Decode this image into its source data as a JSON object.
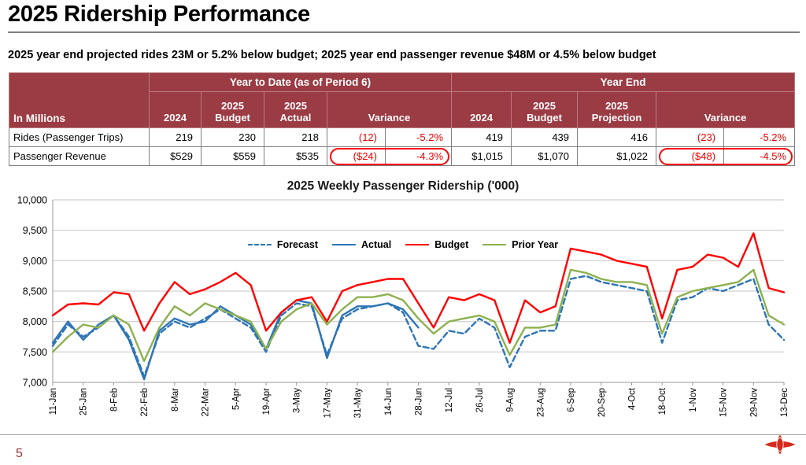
{
  "slide": {
    "title": "2025 Ridership Performance",
    "subtitle": "2025 year end projected rides 23M or 5.2% below budget; 2025 year end passenger revenue $48M or 4.5% below budget",
    "page_number": "5"
  },
  "table": {
    "corner_label": "In Millions",
    "group_headers": [
      "Year to Date (as of Period 6)",
      "Year End"
    ],
    "columns": [
      "2024",
      "2025 Budget",
      "2025 Actual",
      "Variance",
      "2024",
      "2025 Budget",
      "2025 Projection",
      "Variance"
    ],
    "rows": [
      {
        "label": "Rides (Passenger Trips)",
        "values": [
          "219",
          "230",
          "218",
          "(12)",
          "-5.2%",
          "419",
          "439",
          "416",
          "(23)",
          "-5.2%"
        ]
      },
      {
        "label": "Passenger Revenue",
        "values": [
          "$529",
          "$559",
          "$535",
          "($24)",
          "-4.3%",
          "$1,015",
          "$1,070",
          "$1,022",
          "($48)",
          "-4.5%"
        ]
      }
    ],
    "header_bg": "#9B3B43",
    "variance_color": "#EE0000",
    "circle_color": "#FF0000"
  },
  "chart_data": {
    "type": "line",
    "title": "2025 Weekly Passenger Ridership ('000)",
    "ylim": [
      7000,
      10000
    ],
    "yticks": [
      7000,
      7500,
      8000,
      8500,
      9000,
      9500,
      10000
    ],
    "ytick_labels": [
      "7,000",
      "7,500",
      "8,000",
      "8,500",
      "9,000",
      "9,500",
      "10,000"
    ],
    "grid": true,
    "legend_position": "top-center",
    "n_points": 49,
    "x_label_step": 2,
    "x_labels": [
      "11-Jan",
      "25-Jan",
      "8-Feb",
      "22-Feb",
      "8-Mar",
      "22-Mar",
      "5-Apr",
      "19-Apr",
      "3-May",
      "17-May",
      "31-May",
      "14-Jun",
      "28-Jun",
      "12-Jul",
      "26-Jul",
      "9-Aug",
      "23-Aug",
      "6-Sep",
      "20-Sep",
      "4-Oct",
      "18-Oct",
      "1-Nov",
      "15-Nov",
      "29-Nov",
      "13-Dec"
    ],
    "x_dates": [
      "11-Jan",
      "18-Jan",
      "25-Jan",
      "1-Feb",
      "8-Feb",
      "15-Feb",
      "22-Feb",
      "1-Mar",
      "8-Mar",
      "15-Mar",
      "22-Mar",
      "29-Mar",
      "5-Apr",
      "12-Apr",
      "19-Apr",
      "26-Apr",
      "3-May",
      "10-May",
      "17-May",
      "24-May",
      "31-May",
      "7-Jun",
      "14-Jun",
      "21-Jun",
      "28-Jun",
      "5-Jul",
      "12-Jul",
      "19-Jul",
      "26-Jul",
      "2-Aug",
      "9-Aug",
      "16-Aug",
      "23-Aug",
      "30-Aug",
      "6-Sep",
      "13-Sep",
      "20-Sep",
      "27-Sep",
      "4-Oct",
      "11-Oct",
      "18-Oct",
      "25-Oct",
      "1-Nov",
      "8-Nov",
      "15-Nov",
      "22-Nov",
      "29-Nov",
      "6-Dec",
      "13-Dec"
    ],
    "series": [
      {
        "name": "Forecast",
        "color": "#2E75B6",
        "dash": true,
        "values": [
          7600,
          7950,
          7750,
          7900,
          8100,
          7750,
          7100,
          7800,
          8000,
          7900,
          8050,
          8200,
          8050,
          7900,
          7500,
          8100,
          8300,
          8250,
          7450,
          8050,
          8200,
          8250,
          8300,
          8150,
          7600,
          7550,
          7850,
          7800,
          8050,
          7900,
          7250,
          7750,
          7850,
          7850,
          8700,
          8750,
          8650,
          8600,
          8550,
          8500,
          7650,
          8350,
          8400,
          8550,
          8500,
          8600,
          8700,
          7950,
          7700
        ]
      },
      {
        "name": "Actual",
        "color": "#2E75B6",
        "dash": false,
        "values": [
          7650,
          8000,
          7700,
          7950,
          8100,
          7700,
          7050,
          7850,
          8050,
          7950,
          8000,
          8250,
          8100,
          7950,
          7550,
          8150,
          8350,
          8300,
          7400,
          8100,
          8250,
          8250,
          8300,
          8200,
          7900,
          null,
          null,
          null,
          null,
          null,
          null,
          null,
          null,
          null,
          null,
          null,
          null,
          null,
          null,
          null,
          null,
          null,
          null,
          null,
          null,
          null,
          null,
          null,
          null
        ]
      },
      {
        "name": "Budget",
        "color": "#FF0000",
        "dash": false,
        "values": [
          8100,
          8280,
          8300,
          8280,
          8480,
          8450,
          7850,
          8300,
          8650,
          8450,
          8530,
          8650,
          8800,
          8600,
          7850,
          8150,
          8350,
          8400,
          8000,
          8500,
          8600,
          8650,
          8700,
          8700,
          8300,
          7900,
          8400,
          8350,
          8450,
          8350,
          7650,
          8350,
          8150,
          8250,
          9200,
          9150,
          9100,
          9000,
          8950,
          8900,
          8050,
          8850,
          8900,
          9100,
          9050,
          8900,
          9450,
          8550,
          8480
        ]
      },
      {
        "name": "Prior Year",
        "color": "#8DB14F",
        "dash": false,
        "values": [
          7500,
          7750,
          7950,
          7900,
          8100,
          7950,
          7350,
          7900,
          8250,
          8100,
          8300,
          8200,
          8100,
          8000,
          7550,
          8000,
          8200,
          8300,
          7950,
          8200,
          8400,
          8400,
          8450,
          8350,
          8050,
          7800,
          8000,
          8050,
          8100,
          8000,
          7450,
          7900,
          7900,
          7950,
          8850,
          8800,
          8700,
          8650,
          8650,
          8600,
          7800,
          8400,
          8500,
          8550,
          8600,
          8650,
          8850,
          8100,
          7950
        ]
      }
    ]
  }
}
